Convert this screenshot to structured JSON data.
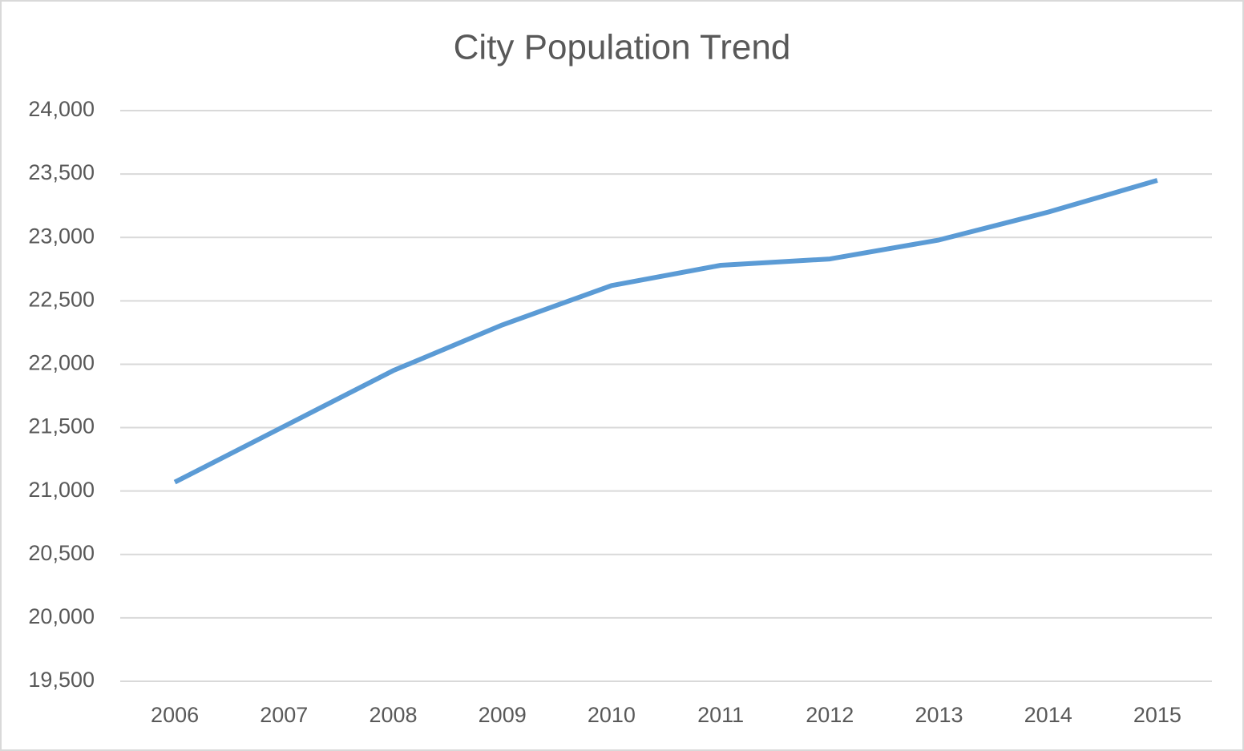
{
  "chart_data": {
    "type": "line",
    "title": "City Population Trend",
    "categories": [
      "2006",
      "2007",
      "2008",
      "2009",
      "2010",
      "2011",
      "2012",
      "2013",
      "2014",
      "2015"
    ],
    "series": [
      {
        "color": "#5b9bd5",
        "values": [
          21070,
          21510,
          21950,
          22310,
          22620,
          22780,
          22830,
          22980,
          23200,
          23450
        ]
      }
    ],
    "ylim": [
      19500,
      24000
    ],
    "yticks": [
      {
        "value": 19500,
        "label": "19,500"
      },
      {
        "value": 20000,
        "label": "20,000"
      },
      {
        "value": 20500,
        "label": "20,500"
      },
      {
        "value": 21000,
        "label": "21,000"
      },
      {
        "value": 21500,
        "label": "21,500"
      },
      {
        "value": 22000,
        "label": "22,000"
      },
      {
        "value": 22500,
        "label": "22,500"
      },
      {
        "value": 23000,
        "label": "23,000"
      },
      {
        "value": 23500,
        "label": "23,500"
      },
      {
        "value": 24000,
        "label": "24,000"
      }
    ],
    "grid": true
  }
}
